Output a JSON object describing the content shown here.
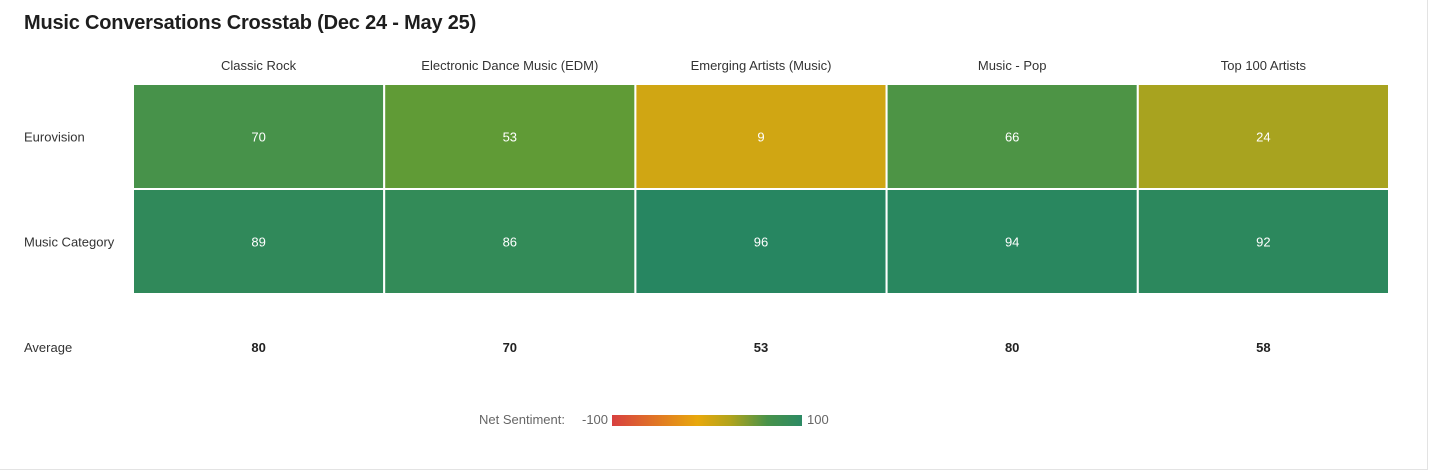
{
  "chart_data": {
    "type": "heatmap",
    "title": "Music Conversations Crosstab (Dec 24 - May 25)",
    "columns": [
      "Classic Rock",
      "Electronic Dance Music (EDM)",
      "Emerging Artists (Music)",
      "Music - Pop",
      "Top 100 Artists"
    ],
    "rows": [
      {
        "label": "Eurovision",
        "values": [
          70,
          53,
          9,
          66,
          24
        ]
      },
      {
        "label": "Music Category",
        "values": [
          89,
          86,
          96,
          94,
          92
        ]
      }
    ],
    "average": {
      "label": "Average",
      "values": [
        80,
        70,
        53,
        80,
        58
      ]
    },
    "legend": {
      "label": "Net Sentiment:",
      "min": -100,
      "max": 100,
      "min_label": "-100",
      "max_label": "100",
      "colors": {
        "negative": "#d84040",
        "neutral": "#e8a80c",
        "positive": "#2c8a64"
      }
    }
  }
}
